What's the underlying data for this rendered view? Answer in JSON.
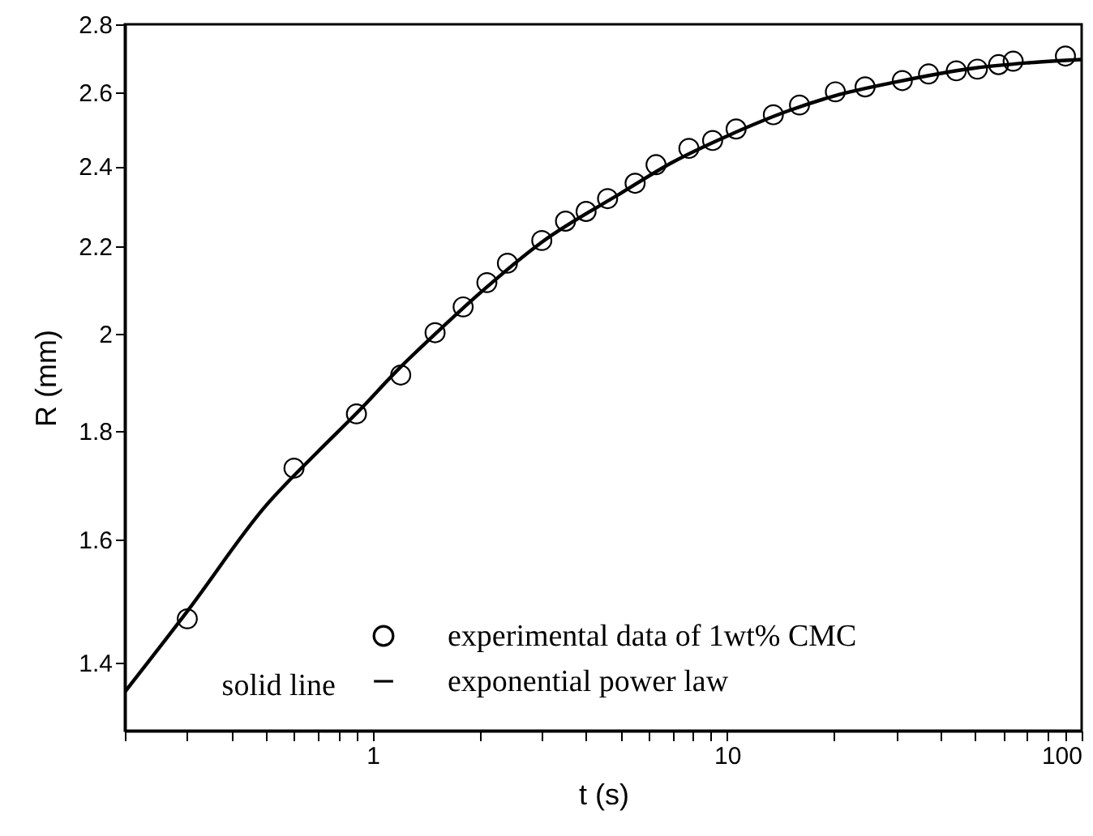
{
  "chart_data": {
    "type": "scatter",
    "xlabel": "t (s)",
    "ylabel": "R (mm)",
    "log": "xy",
    "xlim": [
      0.2,
      100
    ],
    "ylim": [
      1.3,
      2.8
    ],
    "xticks": [
      {
        "value": 0.2,
        "label": null
      },
      {
        "value": 0.3,
        "label": null
      },
      {
        "value": 0.4,
        "label": null
      },
      {
        "value": 0.5,
        "label": null
      },
      {
        "value": 0.6,
        "label": null
      },
      {
        "value": 0.7,
        "label": null
      },
      {
        "value": 0.8,
        "label": null
      },
      {
        "value": 0.9,
        "label": null
      },
      1,
      {
        "value": 2,
        "label": null
      },
      {
        "value": 3,
        "label": null
      },
      {
        "value": 4,
        "label": null
      },
      {
        "value": 5,
        "label": null
      },
      {
        "value": 6,
        "label": null
      },
      {
        "value": 7,
        "label": null
      },
      {
        "value": 8,
        "label": null
      },
      {
        "value": 9,
        "label": null
      },
      10,
      {
        "value": 20,
        "label": null
      },
      {
        "value": 30,
        "label": null
      },
      {
        "value": 40,
        "label": null
      },
      {
        "value": 50,
        "label": null
      },
      {
        "value": 60,
        "label": null
      },
      {
        "value": 70,
        "label": null
      },
      {
        "value": 80,
        "label": null
      },
      {
        "value": 90,
        "label": null
      },
      100
    ],
    "yticks": [
      1.4,
      1.6,
      1.8,
      2,
      2.2,
      2.4,
      2.6,
      2.8
    ],
    "grid": false,
    "legend": "bottom",
    "annotations": [
      "solid line"
    ],
    "series": [
      {
        "name": "experimental data of 1wt% CMC",
        "marker": "circle",
        "color": "#000000",
        "x": [
          0.3,
          0.6,
          0.9,
          1.2,
          1.5,
          1.8,
          2.1,
          2.4,
          3,
          3.5,
          4,
          4.6,
          5.5,
          6.3,
          7.8,
          9.1,
          10.6,
          13.5,
          16,
          20.2,
          24.5,
          31.2,
          37,
          44.3,
          50.8,
          58.3,
          64.1,
          90
        ],
        "values": [
          1.468,
          1.729,
          1.834,
          1.913,
          2.003,
          2.06,
          2.115,
          2.16,
          2.214,
          2.261,
          2.285,
          2.317,
          2.356,
          2.404,
          2.447,
          2.468,
          2.499,
          2.538,
          2.565,
          2.602,
          2.616,
          2.634,
          2.653,
          2.662,
          2.667,
          2.68,
          2.69,
          2.705
        ]
      },
      {
        "name": "exponential power law",
        "type": "line",
        "line_style": "solid",
        "color": "#000000",
        "x": [
          0.2,
          0.3,
          0.5,
          0.7,
          0.9,
          1.2,
          1.5,
          2,
          3,
          5,
          7,
          10,
          15,
          20,
          30,
          50,
          70,
          100
        ],
        "values": [
          1.356,
          1.48,
          1.66,
          1.76,
          1.835,
          1.93,
          2.0,
          2.09,
          2.21,
          2.33,
          2.41,
          2.48,
          2.55,
          2.59,
          2.63,
          2.67,
          2.685,
          2.695
        ]
      }
    ]
  }
}
